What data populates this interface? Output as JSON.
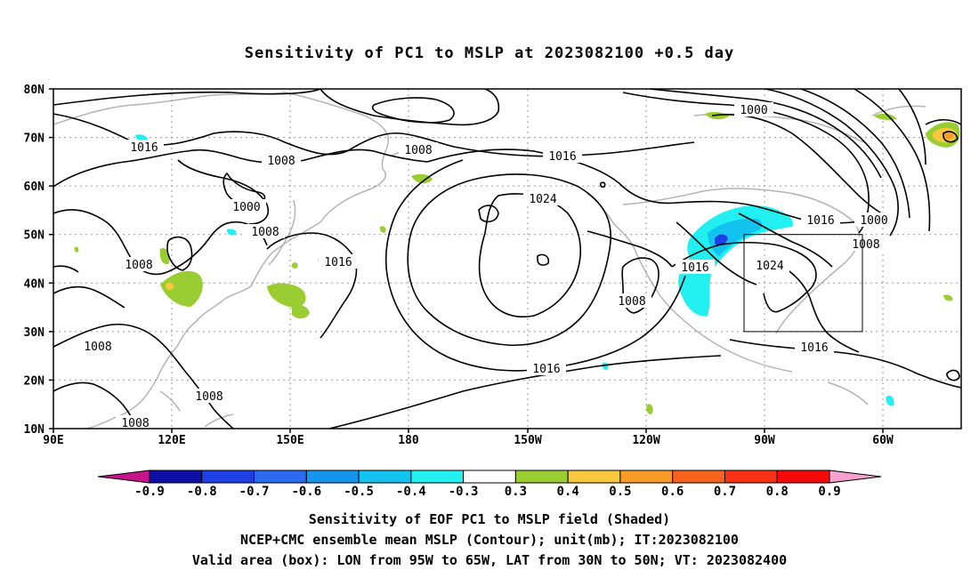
{
  "title": "Sensitivity of PC1 to MSLP at 2023082100 +0.5 day",
  "map": {
    "lat_labels": [
      "80N",
      "70N",
      "60N",
      "50N",
      "40N",
      "30N",
      "20N",
      "10N"
    ],
    "lon_labels": [
      "90E",
      "120E",
      "150E",
      "180",
      "150W",
      "120W",
      "90W",
      "60W"
    ],
    "lon_range": [
      "90E",
      "45W"
    ],
    "lat_range": [
      "10N",
      "80N"
    ],
    "grid": "dotted",
    "valid_box": {
      "lon_west": "95W",
      "lon_east": "65W",
      "lat_south": "30N",
      "lat_north": "50N"
    },
    "contour_labels": [
      "1016",
      "1008",
      "1008",
      "1000",
      "1008",
      "1008",
      "1008",
      "1016",
      "1024",
      "1016",
      "1016",
      "1008",
      "1016",
      "1024",
      "1016",
      "1000",
      "1008",
      "1016",
      "1000",
      "1008",
      "1008"
    ]
  },
  "colorbar": {
    "labels": [
      "-0.9",
      "-0.8",
      "-0.7",
      "-0.6",
      "-0.5",
      "-0.4",
      "-0.3",
      "0.3",
      "0.4",
      "0.5",
      "0.6",
      "0.7",
      "0.8",
      "0.9"
    ],
    "colors": [
      "#0f0fa8",
      "#1f3fe6",
      "#2a6bf2",
      "#1595f0",
      "#12c3f0",
      "#22f0f0",
      "#ffffff",
      "#9acd32",
      "#f8c83c",
      "#f89c28",
      "#f8641e",
      "#f83214",
      "#f80a0a"
    ],
    "low_end_color": "#c8148c",
    "high_end_color": "#f8a0d0"
  },
  "captions": [
    "Sensitivity of EOF PC1 to MSLP field (Shaded)",
    "NCEP+CMC ensemble mean MSLP (Contour); unit(mb); IT:2023082100",
    "Valid area (box): LON from 95W to 65W, LAT from 30N to 50N; VT: 2023082400"
  ]
}
